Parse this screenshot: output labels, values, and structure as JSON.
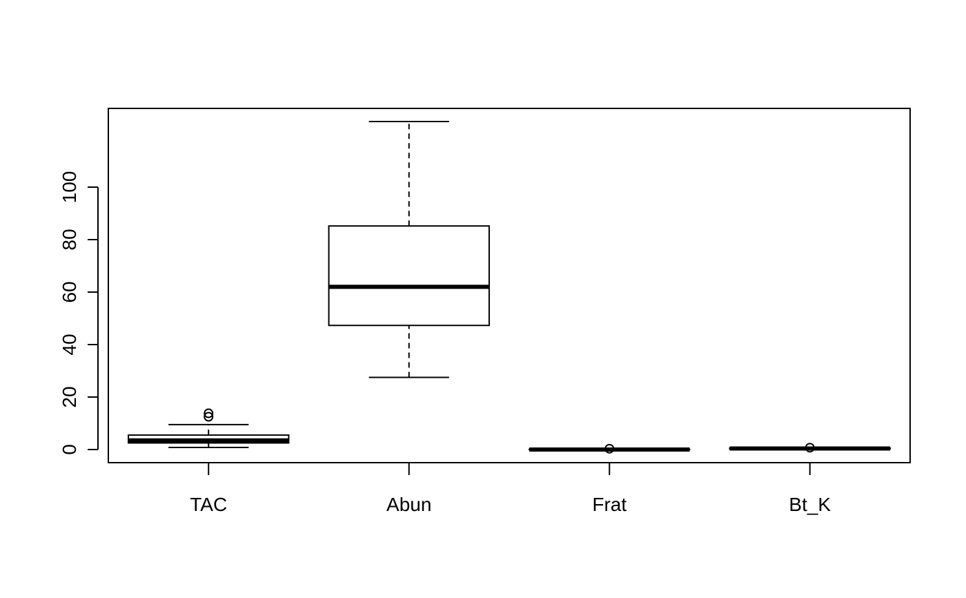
{
  "chart_data": {
    "type": "boxplot",
    "title": "",
    "xlabel": "",
    "ylabel": "",
    "categories": [
      "TAC",
      "Abun",
      "Frat",
      "Bt_K"
    ],
    "ylim": [
      -5,
      130
    ],
    "yticks": [
      "0",
      "20",
      "40",
      "60",
      "80",
      "100"
    ],
    "grid": false,
    "legend": "none",
    "colors": {
      "line": "#000000",
      "background": "#ffffff"
    },
    "boxes": [
      {
        "name": "TAC",
        "whisker_low": 0.8,
        "q1": 2.5,
        "median": 3.5,
        "q3": 5.5,
        "whisker_high": 9.5,
        "outliers": [
          12.5,
          13.8
        ]
      },
      {
        "name": "Abun",
        "whisker_low": 27.5,
        "q1": 47.3,
        "median": 62.0,
        "q3": 85.2,
        "whisker_high": 125.0,
        "outliers": []
      },
      {
        "name": "Frat",
        "whisker_low": 0.0,
        "q1": 0.0,
        "median": 0.0,
        "q3": 0.1,
        "whisker_high": 0.2,
        "outliers": [
          0.3
        ]
      },
      {
        "name": "Bt_K",
        "whisker_low": 0.1,
        "q1": 0.2,
        "median": 0.4,
        "q3": 0.6,
        "whisker_high": 0.8,
        "outliers": [
          0.7
        ]
      }
    ]
  }
}
